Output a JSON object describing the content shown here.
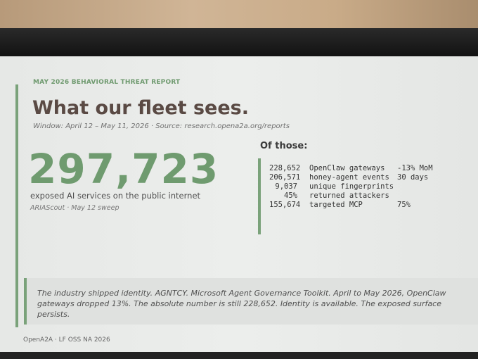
{
  "header": {
    "eyebrow": "MAY 2026 BEHAVIORAL THREAT REPORT",
    "title": "What our fleet sees.",
    "window": "Window: April 12 – May 11, 2026 · Source: research.opena2a.org/reports"
  },
  "hero": {
    "number": "297,723",
    "caption": "exposed AI services on the public internet",
    "source": "ARIAScout · May 12 sweep"
  },
  "breakdown": {
    "heading": "Of those:",
    "rows": [
      {
        "value": "228,652",
        "label": "OpenClaw gateways",
        "note": "-13% MoM"
      },
      {
        "value": "206,571",
        "label": "honey-agent events",
        "note": "30 days"
      },
      {
        "value": "9,037",
        "label": "unique fingerprints"
      },
      {
        "value": "45%",
        "label": "returned attackers"
      },
      {
        "value": "155,674",
        "label": "targeted MCP",
        "note": "75%"
      }
    ]
  },
  "quote": "The industry shipped identity. AGNTCY. Microsoft Agent Governance Toolkit. April to May 2026, OpenClaw gateways dropped 13%. The absolute number is still 228,652. Identity is available. The exposed surface persists.",
  "footer": "OpenA2A · LF OSS NA 2026"
}
